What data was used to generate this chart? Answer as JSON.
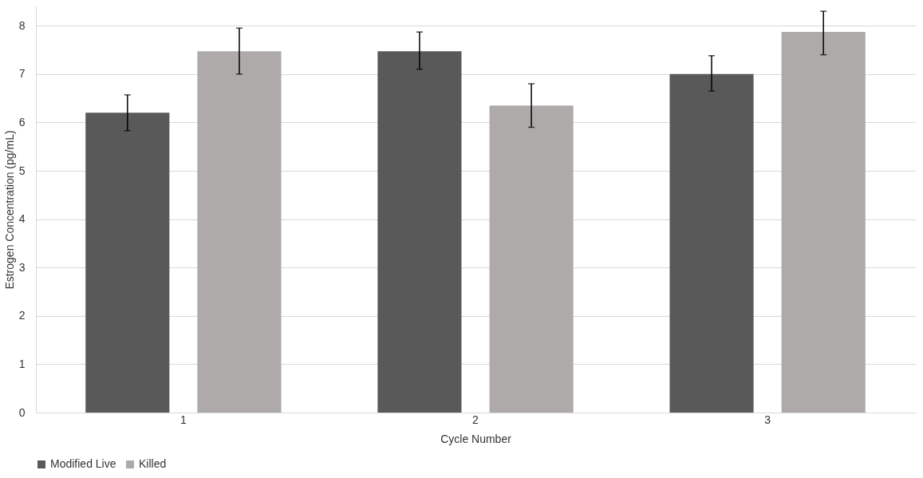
{
  "chart_data": {
    "type": "bar",
    "xlabel": "Cycle Number",
    "ylabel": "Estrogen Concentration (pg/mL)",
    "categories": [
      "1",
      "2",
      "3"
    ],
    "series": [
      {
        "name": "Modified Live",
        "color": "#595959",
        "values": [
          6.2,
          7.47,
          7.0
        ],
        "errors": [
          [
            5.83,
            6.57
          ],
          [
            7.1,
            7.87
          ],
          [
            6.65,
            7.38
          ]
        ]
      },
      {
        "name": "Killed",
        "color": "#aeaaaa",
        "values": [
          7.47,
          6.35,
          7.87
        ],
        "errors": [
          [
            7.0,
            7.95
          ],
          [
            5.9,
            6.8
          ],
          [
            7.4,
            8.3
          ]
        ]
      }
    ],
    "ylim": [
      0,
      8.4
    ],
    "yticks": [
      0,
      1,
      2,
      3,
      4,
      5,
      6,
      7,
      8
    ],
    "grid": "y",
    "legend": "bottom"
  }
}
